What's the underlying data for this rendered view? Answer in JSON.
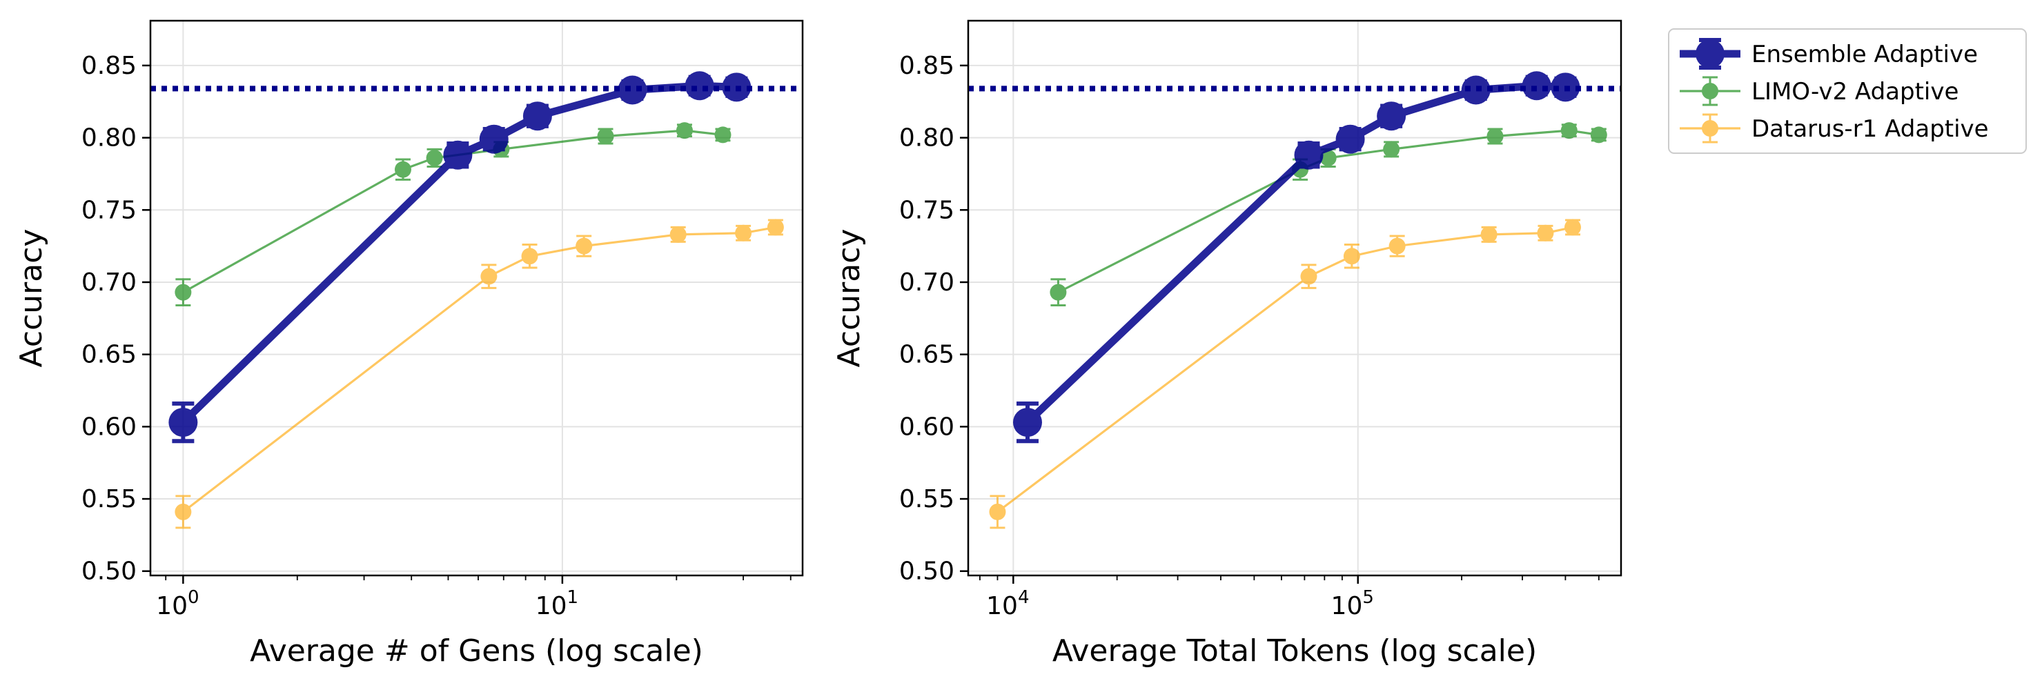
{
  "chart_data": [
    {
      "type": "line",
      "id": "gens",
      "xscale": "log",
      "xlabel": "Average # of Gens (log scale)",
      "ylabel": "Accuracy",
      "xlim": [
        0.82,
        43
      ],
      "ylim": [
        0.497,
        0.881
      ],
      "xticks": [
        {
          "value": 1,
          "base": "10",
          "exp": "0"
        },
        {
          "value": 10,
          "base": "10",
          "exp": "1"
        }
      ],
      "yticks": [
        {
          "value": 0.5,
          "label": "0.50"
        },
        {
          "value": 0.55,
          "label": "0.55"
        },
        {
          "value": 0.6,
          "label": "0.60"
        },
        {
          "value": 0.65,
          "label": "0.65"
        },
        {
          "value": 0.7,
          "label": "0.70"
        },
        {
          "value": 0.75,
          "label": "0.75"
        },
        {
          "value": 0.8,
          "label": "0.80"
        },
        {
          "value": 0.85,
          "label": "0.85"
        }
      ],
      "grid": true,
      "reference_line": 0.834,
      "series": [
        {
          "name": "Ensemble Adaptive",
          "color": "#00008b",
          "x": [
            1.0,
            5.3,
            6.6,
            8.6,
            15.3,
            23.0,
            28.8
          ],
          "y": [
            0.603,
            0.788,
            0.799,
            0.815,
            0.833,
            0.836,
            0.835
          ],
          "err": [
            0.013,
            0.008,
            0.007,
            0.007,
            0.006,
            0.006,
            0.006
          ]
        },
        {
          "name": "LIMO-v2 Adaptive",
          "color": "#008000",
          "x": [
            1.0,
            3.8,
            4.6,
            6.9,
            13.0,
            21.0,
            26.5
          ],
          "y": [
            0.693,
            0.778,
            0.786,
            0.792,
            0.801,
            0.805,
            0.802
          ],
          "err": [
            0.009,
            0.007,
            0.006,
            0.005,
            0.005,
            0.004,
            0.004
          ]
        },
        {
          "name": "Datarus-r1 Adaptive",
          "color": "#ffa500",
          "x": [
            1.0,
            6.4,
            8.2,
            11.4,
            20.2,
            30.0,
            36.5
          ],
          "y": [
            0.541,
            0.704,
            0.718,
            0.725,
            0.733,
            0.734,
            0.738
          ],
          "err": [
            0.011,
            0.008,
            0.008,
            0.007,
            0.005,
            0.005,
            0.005
          ]
        }
      ]
    },
    {
      "type": "line",
      "id": "tokens",
      "xscale": "log",
      "xlabel": "Average Total Tokens (log scale)",
      "ylabel": "Accuracy",
      "xlim": [
        7400,
        580000
      ],
      "ylim": [
        0.497,
        0.881
      ],
      "xticks": [
        {
          "value": 10000,
          "base": "10",
          "exp": "4"
        },
        {
          "value": 100000,
          "base": "10",
          "exp": "5"
        }
      ],
      "yticks": [
        {
          "value": 0.5,
          "label": "0.50"
        },
        {
          "value": 0.55,
          "label": "0.55"
        },
        {
          "value": 0.6,
          "label": "0.60"
        },
        {
          "value": 0.65,
          "label": "0.65"
        },
        {
          "value": 0.7,
          "label": "0.70"
        },
        {
          "value": 0.75,
          "label": "0.75"
        },
        {
          "value": 0.8,
          "label": "0.80"
        },
        {
          "value": 0.85,
          "label": "0.85"
        }
      ],
      "grid": true,
      "reference_line": 0.834,
      "series": [
        {
          "name": "Ensemble Adaptive",
          "color": "#00008b",
          "x": [
            11000,
            72000,
            95000,
            125000,
            220000,
            330000,
            400000
          ],
          "y": [
            0.603,
            0.788,
            0.799,
            0.815,
            0.833,
            0.836,
            0.835
          ],
          "err": [
            0.013,
            0.008,
            0.007,
            0.007,
            0.006,
            0.006,
            0.006
          ]
        },
        {
          "name": "LIMO-v2 Adaptive",
          "color": "#008000",
          "x": [
            13500,
            68000,
            82000,
            125000,
            250000,
            410000,
            500000
          ],
          "y": [
            0.693,
            0.778,
            0.786,
            0.792,
            0.801,
            0.805,
            0.802
          ],
          "err": [
            0.009,
            0.007,
            0.006,
            0.005,
            0.005,
            0.004,
            0.004
          ]
        },
        {
          "name": "Datarus-r1 Adaptive",
          "color": "#ffa500",
          "x": [
            9000,
            72000,
            96000,
            130000,
            240000,
            350000,
            420000
          ],
          "y": [
            0.541,
            0.704,
            0.718,
            0.725,
            0.733,
            0.734,
            0.738
          ],
          "err": [
            0.011,
            0.008,
            0.008,
            0.007,
            0.005,
            0.005,
            0.005
          ]
        }
      ]
    }
  ],
  "legend": {
    "placement": "outside-right-top",
    "entries": [
      {
        "label": "Ensemble Adaptive",
        "color": "#00008b",
        "style": "thick"
      },
      {
        "label": "LIMO-v2 Adaptive",
        "color": "#008000",
        "style": "thin"
      },
      {
        "label": "Datarus-r1 Adaptive",
        "color": "#ffa500",
        "style": "thin"
      }
    ]
  }
}
